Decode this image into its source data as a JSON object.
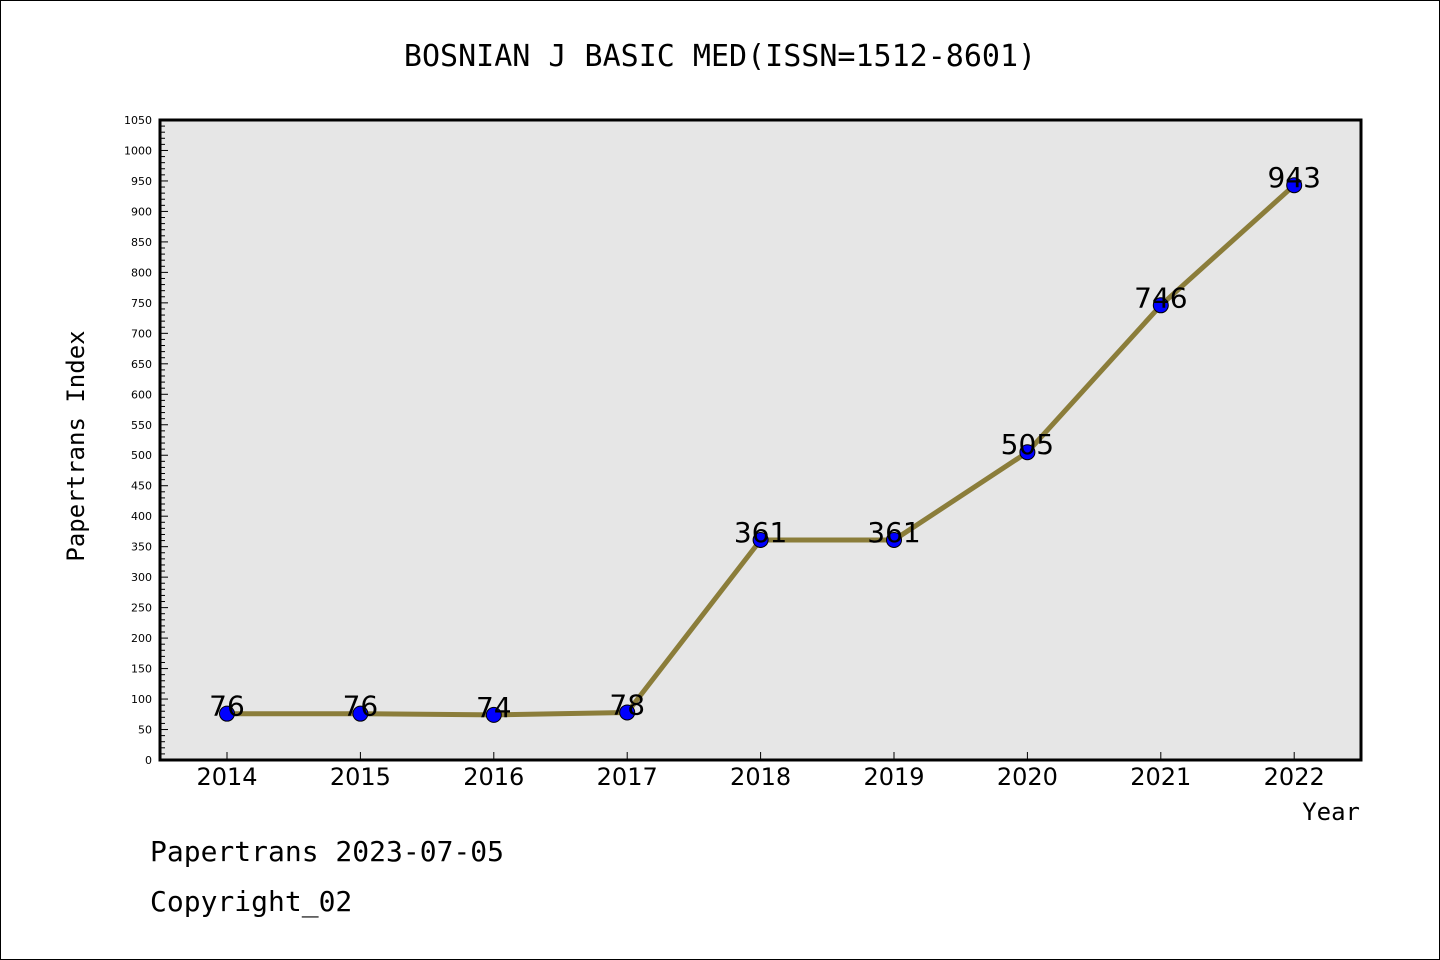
{
  "chart_data": {
    "type": "line",
    "title": "BOSNIAN J BASIC MED(ISSN=1512-8601)",
    "xlabel": "Year",
    "ylabel": "Papertrans Index",
    "categories": [
      "2014",
      "2015",
      "2016",
      "2017",
      "2018",
      "2019",
      "2020",
      "2021",
      "2022"
    ],
    "series": [
      {
        "values": [
          76,
          76,
          74,
          78,
          361,
          361,
          505,
          746,
          943
        ]
      }
    ],
    "data_labels": [
      "76",
      "76",
      "74",
      "78",
      "361",
      "361",
      "505",
      "746",
      "943"
    ],
    "ylim": [
      0,
      1050
    ],
    "y_major_step": 50,
    "y_minor_step": 10,
    "grid": false,
    "colors": {
      "line": "#8b7d3a",
      "marker": "#0000ff",
      "plot_background": "#e6e6e6"
    }
  },
  "footer": {
    "line1": "Papertrans 2023-07-05",
    "line2": "Copyright_02"
  }
}
